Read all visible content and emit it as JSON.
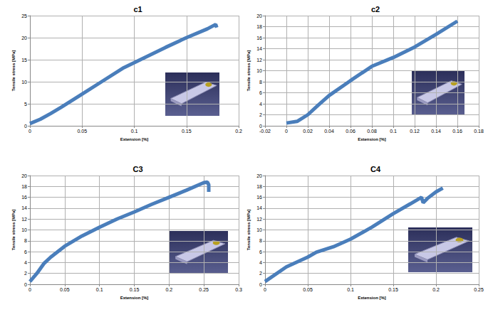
{
  "chart_data": [
    {
      "type": "line",
      "title": "c1",
      "x_label": "Extension [%]",
      "y_label": "Tensile stress [MPa]",
      "x": [
        0,
        0.01,
        0.02,
        0.03,
        0.05,
        0.07,
        0.09,
        0.11,
        0.13,
        0.15,
        0.17,
        0.178,
        0.179
      ],
      "values": [
        0.5,
        1.5,
        2.8,
        4.2,
        7.2,
        10.2,
        13.2,
        15.5,
        17.8,
        20,
        22,
        23,
        22.3
      ],
      "color": "#4a7ebb",
      "xlim": [
        0,
        0.2
      ],
      "xticks": [
        0,
        0.05,
        0.1,
        0.15,
        0.2
      ],
      "ylim": [
        0,
        25
      ],
      "yticks": [
        0,
        5,
        10,
        15,
        20,
        25
      ],
      "grid": true
    },
    {
      "type": "line",
      "title": "c2",
      "x_label": "Extension [%]",
      "y_label": "Tensile stress [MPa]",
      "x": [
        0,
        0.01,
        0.02,
        0.03,
        0.04,
        0.06,
        0.08,
        0.1,
        0.12,
        0.14,
        0.16
      ],
      "values": [
        0.5,
        0.8,
        2,
        3.8,
        5.5,
        8.2,
        10.8,
        12.4,
        14.3,
        16.6,
        19
      ],
      "color": "#4a7ebb",
      "xlim": [
        -0.02,
        0.18
      ],
      "xticks": [
        -0.02,
        0,
        0.02,
        0.04,
        0.06,
        0.08,
        0.1,
        0.12,
        0.14,
        0.16,
        0.18
      ],
      "ylim": [
        0,
        20
      ],
      "yticks": [
        0,
        2,
        4,
        6,
        8,
        10,
        12,
        14,
        16,
        18,
        20
      ],
      "grid": true
    },
    {
      "type": "line",
      "title": "C3",
      "x_label": "Extension [%]",
      "y_label": "Tensile stress [MPa]",
      "x": [
        0,
        0.01,
        0.02,
        0.03,
        0.05,
        0.075,
        0.1,
        0.125,
        0.15,
        0.175,
        0.2,
        0.225,
        0.25,
        0.255,
        0.257,
        0.257
      ],
      "values": [
        0.5,
        2,
        3.8,
        5,
        7,
        8.9,
        10.5,
        12,
        13.3,
        14.7,
        16,
        17.3,
        18.7,
        18.8,
        18.3,
        17
      ],
      "color": "#4a7ebb",
      "xlim": [
        0,
        0.3
      ],
      "xticks": [
        0,
        0.05,
        0.1,
        0.15,
        0.2,
        0.25,
        0.3
      ],
      "ylim": [
        0,
        20
      ],
      "yticks": [
        0,
        2,
        4,
        6,
        8,
        10,
        12,
        14,
        16,
        18,
        20
      ],
      "grid": true
    },
    {
      "type": "line",
      "title": "C4",
      "x_label": "Extension [%]",
      "y_label": "Tensile stress [MPa]",
      "x": [
        0,
        0.025,
        0.05,
        0.06,
        0.08,
        0.1,
        0.125,
        0.15,
        0.17,
        0.183,
        0.185,
        0.19,
        0.2,
        0.208
      ],
      "values": [
        0.5,
        3.2,
        5,
        5.9,
        6.9,
        8.3,
        10.5,
        13,
        14.8,
        16,
        15,
        15.8,
        17,
        17.7
      ],
      "color": "#4a7ebb",
      "xlim": [
        0,
        0.25
      ],
      "xticks": [
        0,
        0.05,
        0.1,
        0.15,
        0.2,
        0.25
      ],
      "ylim": [
        0,
        20
      ],
      "yticks": [
        0,
        2,
        4,
        6,
        8,
        10,
        12,
        14,
        16,
        18,
        20
      ],
      "grid": true
    }
  ]
}
